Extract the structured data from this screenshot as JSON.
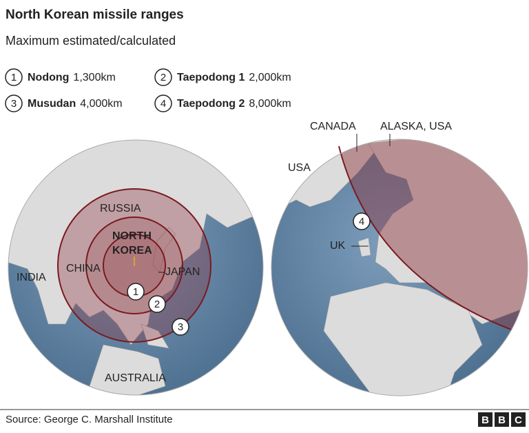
{
  "header": {
    "title": "North Korean missile ranges",
    "subtitle": "Maximum estimated/calculated"
  },
  "legend": [
    {
      "number": "1",
      "name": "Nodong",
      "range": "1,300km"
    },
    {
      "number": "2",
      "name": "Taepodong 1",
      "range": "2,000km"
    },
    {
      "number": "3",
      "name": "Musudan",
      "range": "4,000km"
    },
    {
      "number": "4",
      "name": "Taepodong 2",
      "range": "8,000km"
    }
  ],
  "asia_globe": {
    "russia": "RUSSIA",
    "north_korea": [
      "NORTH",
      "KOREA"
    ],
    "china": "CHINA",
    "japan": "JAPAN",
    "india": "INDIA",
    "australia": "AUSTRALIA",
    "markers": [
      "1",
      "2",
      "3"
    ]
  },
  "europe_globe": {
    "canada": "CANADA",
    "alaska": "ALASKA, USA",
    "usa": "USA",
    "uk": "UK",
    "marker": "4"
  },
  "footer": {
    "source": "Source: George C. Marshall Institute",
    "logo": [
      "B",
      "B",
      "C"
    ]
  }
}
